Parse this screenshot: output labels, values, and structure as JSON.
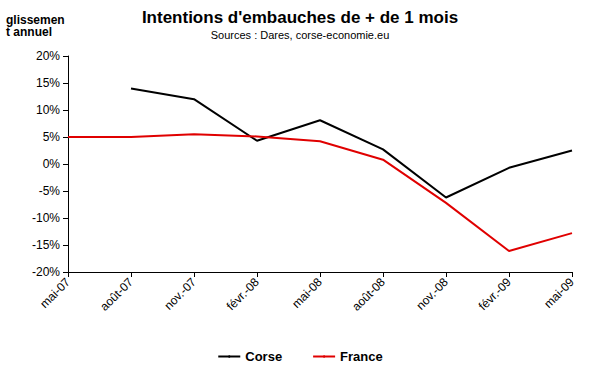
{
  "chart_data": {
    "type": "line",
    "title": "Intentions d'embauches de + de 1 mois",
    "subtitle": "Sources : Dares, corse-economie.eu",
    "y_label": "glissement annuel",
    "categories": [
      "mai-07",
      "août-07",
      "nov.-07",
      "févr.-08",
      "mai-08",
      "août-08",
      "nov.-08",
      "févr.-09",
      "mai-09"
    ],
    "series": [
      {
        "name": "Corse",
        "color": "#000000",
        "values": [
          null,
          14,
          12,
          4.3,
          8.1,
          2.7,
          -6.2,
          -0.7,
          2.5
        ]
      },
      {
        "name": "France",
        "color": "#e00000",
        "values": [
          5,
          5,
          5.5,
          5.1,
          4.2,
          0.8,
          -7.2,
          -16.1,
          -12.8
        ]
      }
    ],
    "ylim": [
      -20,
      20
    ],
    "yticks": [
      {
        "value": -20,
        "label": "-20%"
      },
      {
        "value": -15,
        "label": "-15%"
      },
      {
        "value": -10,
        "label": "-10%"
      },
      {
        "value": -5,
        "label": "-5%"
      },
      {
        "value": 0,
        "label": "0%"
      },
      {
        "value": 5,
        "label": "5%"
      },
      {
        "value": 10,
        "label": "10%"
      },
      {
        "value": 15,
        "label": "15%"
      },
      {
        "value": 20,
        "label": "20%"
      }
    ],
    "grid": false,
    "legend": "bottom"
  }
}
